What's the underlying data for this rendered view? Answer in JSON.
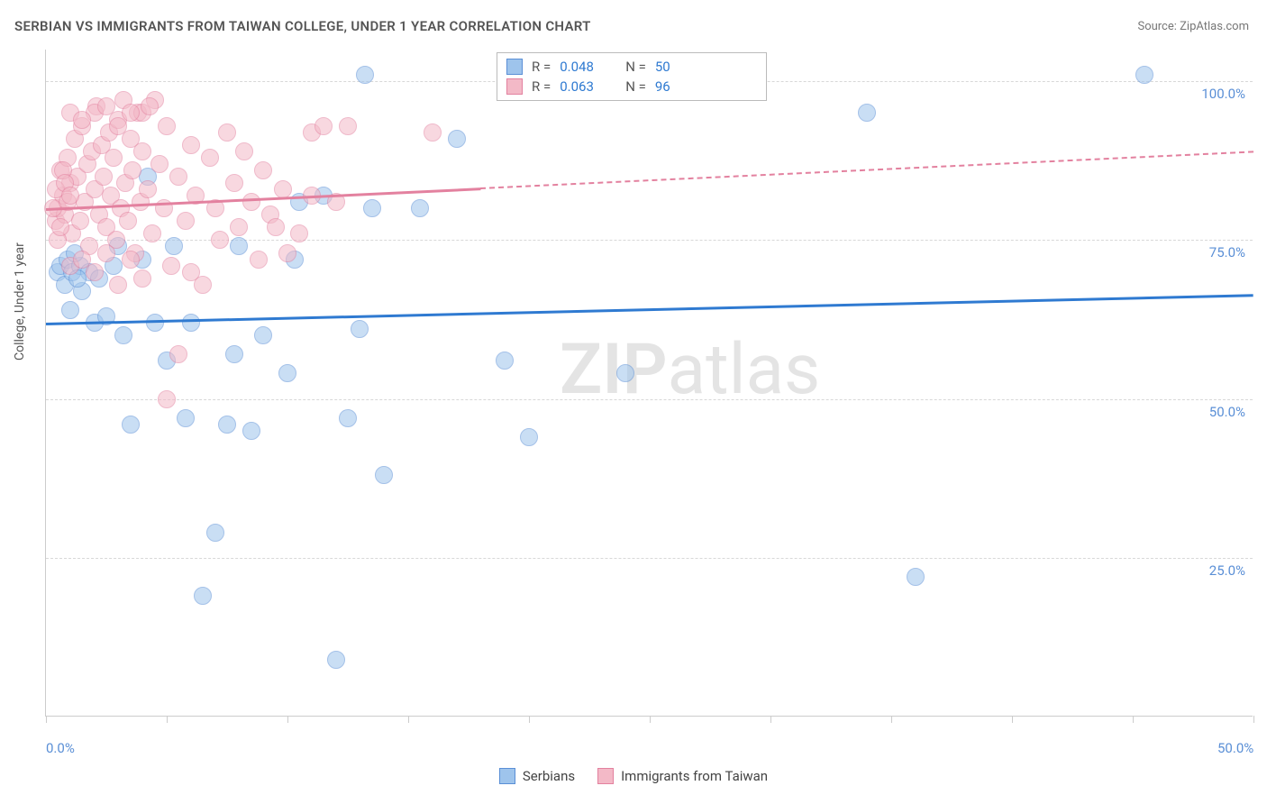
{
  "title": "SERBIAN VS IMMIGRANTS FROM TAIWAN COLLEGE, UNDER 1 YEAR CORRELATION CHART",
  "source": "Source: ZipAtlas.com",
  "y_axis_label": "College, Under 1 year",
  "watermark_a": "ZIP",
  "watermark_b": "atlas",
  "chart": {
    "type": "scatter",
    "xlim": [
      0,
      50
    ],
    "ylim": [
      0,
      105
    ],
    "x_ticks": [
      0,
      5,
      10,
      15,
      20,
      25,
      30,
      35,
      40,
      45,
      50
    ],
    "x_tick_labels": {
      "0": "0.0%",
      "50": "50.0%"
    },
    "y_grid": [
      25,
      50,
      75,
      100
    ],
    "y_grid_labels": {
      "25": "25.0%",
      "50": "50.0%",
      "75": "75.0%",
      "100": "100.0%"
    },
    "background_color": "#ffffff",
    "grid_color": "#d8d8d8",
    "axis_color": "#cccccc",
    "marker_radius": 10,
    "marker_opacity": 0.55,
    "series": [
      {
        "name": "Serbians",
        "color_fill": "#9ec4ec",
        "color_stroke": "#5a8fd6",
        "r_value": "0.048",
        "n_value": "50",
        "trend": {
          "x1": 0,
          "y1": 62,
          "x2": 50,
          "y2": 66.5,
          "color": "#2f7ad1",
          "dashed_from": null
        },
        "points": [
          [
            0.5,
            70
          ],
          [
            0.6,
            71
          ],
          [
            0.8,
            68
          ],
          [
            0.9,
            72
          ],
          [
            1.0,
            64
          ],
          [
            1.1,
            70
          ],
          [
            1.4,
            71
          ],
          [
            1.5,
            67
          ],
          [
            1.8,
            70
          ],
          [
            2.0,
            62
          ],
          [
            2.2,
            69
          ],
          [
            2.5,
            63
          ],
          [
            2.8,
            71
          ],
          [
            3.0,
            74
          ],
          [
            3.2,
            60
          ],
          [
            3.5,
            46
          ],
          [
            4.0,
            72
          ],
          [
            4.2,
            85
          ],
          [
            4.5,
            62
          ],
          [
            5.0,
            56
          ],
          [
            5.3,
            74
          ],
          [
            5.8,
            47
          ],
          [
            6.0,
            62
          ],
          [
            6.5,
            19
          ],
          [
            7.0,
            29
          ],
          [
            7.5,
            46
          ],
          [
            7.8,
            57
          ],
          [
            8.0,
            74
          ],
          [
            8.5,
            45
          ],
          [
            9.0,
            60
          ],
          [
            10.0,
            54
          ],
          [
            10.3,
            72
          ],
          [
            10.5,
            81
          ],
          [
            11.5,
            82
          ],
          [
            12.0,
            9
          ],
          [
            12.5,
            47
          ],
          [
            13.0,
            61
          ],
          [
            13.2,
            101
          ],
          [
            13.5,
            80
          ],
          [
            14.0,
            38
          ],
          [
            15.5,
            80
          ],
          [
            17.0,
            91
          ],
          [
            19.0,
            56
          ],
          [
            20.0,
            44
          ],
          [
            24.0,
            54
          ],
          [
            34.0,
            95
          ],
          [
            36.0,
            22
          ],
          [
            45.5,
            101
          ],
          [
            1.2,
            73
          ],
          [
            1.3,
            69
          ]
        ]
      },
      {
        "name": "Immigrants from Taiwan",
        "color_fill": "#f3b9c7",
        "color_stroke": "#e3819f",
        "r_value": "0.063",
        "n_value": "96",
        "trend": {
          "x1": 0,
          "y1": 80,
          "x2": 50,
          "y2": 89,
          "color": "#e3819f",
          "dashed_from": 18
        },
        "points": [
          [
            0.4,
            78
          ],
          [
            0.5,
            80
          ],
          [
            0.6,
            86
          ],
          [
            0.7,
            82
          ],
          [
            0.8,
            79
          ],
          [
            0.9,
            88
          ],
          [
            1.0,
            84
          ],
          [
            1.1,
            76
          ],
          [
            1.2,
            91
          ],
          [
            1.3,
            85
          ],
          [
            1.4,
            78
          ],
          [
            1.5,
            93
          ],
          [
            1.6,
            81
          ],
          [
            1.7,
            87
          ],
          [
            1.8,
            74
          ],
          [
            1.9,
            89
          ],
          [
            2.0,
            83
          ],
          [
            2.1,
            96
          ],
          [
            2.2,
            79
          ],
          [
            2.3,
            90
          ],
          [
            2.4,
            85
          ],
          [
            2.5,
            77
          ],
          [
            2.6,
            92
          ],
          [
            2.7,
            82
          ],
          [
            2.8,
            88
          ],
          [
            2.9,
            75
          ],
          [
            3.0,
            94
          ],
          [
            3.1,
            80
          ],
          [
            3.2,
            97
          ],
          [
            3.3,
            84
          ],
          [
            3.4,
            78
          ],
          [
            3.5,
            91
          ],
          [
            3.6,
            86
          ],
          [
            3.7,
            73
          ],
          [
            3.8,
            95
          ],
          [
            3.9,
            81
          ],
          [
            4.0,
            89
          ],
          [
            4.2,
            83
          ],
          [
            4.4,
            76
          ],
          [
            4.5,
            97
          ],
          [
            4.7,
            87
          ],
          [
            4.9,
            80
          ],
          [
            5.0,
            93
          ],
          [
            5.2,
            71
          ],
          [
            5.5,
            85
          ],
          [
            5.8,
            78
          ],
          [
            6.0,
            90
          ],
          [
            6.2,
            82
          ],
          [
            6.5,
            68
          ],
          [
            6.8,
            88
          ],
          [
            7.0,
            80
          ],
          [
            7.2,
            75
          ],
          [
            7.5,
            92
          ],
          [
            7.8,
            84
          ],
          [
            8.0,
            77
          ],
          [
            8.2,
            89
          ],
          [
            8.5,
            81
          ],
          [
            8.8,
            72
          ],
          [
            9.0,
            86
          ],
          [
            9.3,
            79
          ],
          [
            5.0,
            50
          ],
          [
            5.5,
            57
          ],
          [
            1.0,
            71
          ],
          [
            1.5,
            72
          ],
          [
            2.0,
            70
          ],
          [
            2.5,
            73
          ],
          [
            3.0,
            68
          ],
          [
            3.5,
            72
          ],
          [
            4.0,
            69
          ],
          [
            6.0,
            70
          ],
          [
            4.0,
            95
          ],
          [
            4.3,
            96
          ],
          [
            2.0,
            95
          ],
          [
            2.5,
            96
          ],
          [
            3.0,
            93
          ],
          [
            3.5,
            95
          ],
          [
            1.0,
            95
          ],
          [
            1.5,
            94
          ],
          [
            11.0,
            92
          ],
          [
            11.5,
            93
          ],
          [
            11.0,
            82
          ],
          [
            12.0,
            81
          ],
          [
            12.5,
            93
          ],
          [
            10.0,
            73
          ],
          [
            10.5,
            76
          ],
          [
            9.5,
            77
          ],
          [
            9.8,
            83
          ],
          [
            16.0,
            92
          ],
          [
            0.3,
            80
          ],
          [
            0.4,
            83
          ],
          [
            0.5,
            75
          ],
          [
            0.6,
            77
          ],
          [
            0.7,
            86
          ],
          [
            0.8,
            84
          ],
          [
            0.9,
            81
          ],
          [
            1.0,
            82
          ]
        ]
      }
    ]
  },
  "legend_bottom": [
    "Serbians",
    "Immigrants from Taiwan"
  ],
  "legend_top_label_r": "R =",
  "legend_top_label_n": "N ="
}
